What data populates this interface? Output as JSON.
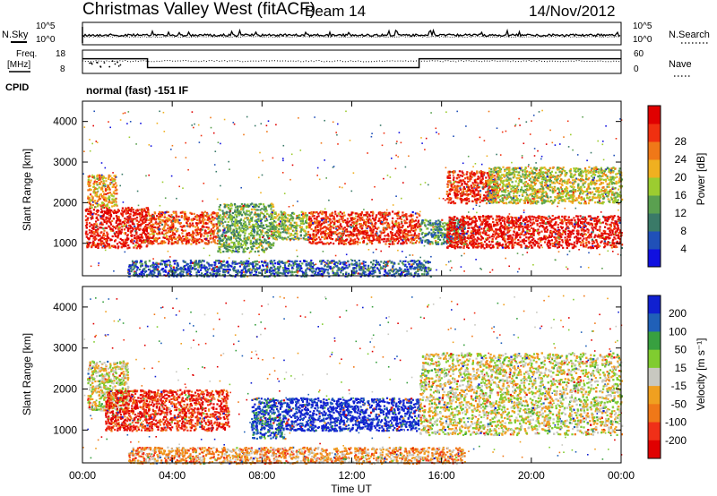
{
  "header": {
    "radar": "Christmas Valley West (fitACF)",
    "beam": "Beam 14",
    "date": "14/Nov/2012"
  },
  "meta_panel": {
    "nsky_label": "N.Sky",
    "nsearch_label": "N.Search",
    "noise_ticks": [
      "10^5",
      "10^0"
    ],
    "freq_label_1": "Freq.",
    "freq_label_2": "[MHz]",
    "freq_ticks": [
      "18",
      "8"
    ],
    "nave_label": "Nave",
    "nave_ticks": [
      "60",
      "0"
    ],
    "cpid_label": "CPID",
    "cpid_value": "normal (fast) -151 IF"
  },
  "x_axis": {
    "label": "Time UT",
    "ticks": [
      "00:00",
      "04:00",
      "08:00",
      "12:00",
      "16:00",
      "20:00",
      "00:00"
    ]
  },
  "power_panel": {
    "ylabel": "Slant Range [km]",
    "yticks": [
      "1000",
      "2000",
      "3000",
      "4000"
    ],
    "colorbar_label": "Power [dB]",
    "colorbar_ticks": [
      "4",
      "8",
      "12",
      "16",
      "20",
      "24",
      "28"
    ],
    "colors": [
      "#1010e0",
      "#2050b8",
      "#3a7a68",
      "#5aa050",
      "#9ccc30",
      "#f0b020",
      "#f07818",
      "#f03010",
      "#e00000"
    ]
  },
  "velocity_panel": {
    "ylabel": "Slant Range [km]",
    "yticks": [
      "1000",
      "2000",
      "3000",
      "4000"
    ],
    "colorbar_label": "Velocity [m s⁻¹]",
    "colorbar_ticks": [
      "200",
      "100",
      "50",
      "15",
      "-15",
      "-50",
      "-100",
      "-200"
    ],
    "colors": [
      "#1020d0",
      "#2060b8",
      "#38a040",
      "#80cc30",
      "#c8c8c0",
      "#f0a020",
      "#f07818",
      "#f03018",
      "#e00000"
    ]
  },
  "chart_data": [
    {
      "type": "line",
      "title": "Christmas Valley West (fitACF)",
      "x_unit": "hours UT",
      "xlim": [
        0,
        24
      ],
      "series": [
        {
          "name": "Freq.",
          "x": [
            0,
            2.9,
            2.9,
            15,
            15,
            24
          ],
          "values": [
            14.3,
            14.3,
            10.5,
            10.5,
            14.3,
            14.3
          ]
        }
      ],
      "ylim": [
        8,
        18
      ]
    },
    {
      "type": "heatmap",
      "xlabel": "Time UT",
      "ylabel": "Slant Range [km]",
      "xlim": [
        0,
        24
      ],
      "ylim": [
        200,
        4500
      ],
      "colorbar_label": "Power [dB]",
      "colorbar_range": [
        0,
        30
      ],
      "regions": [
        {
          "t": [
            0.1,
            2.9
          ],
          "range_km": [
            900,
            1900
          ],
          "value": 28
        },
        {
          "t": [
            0.2,
            1.5
          ],
          "range_km": [
            1900,
            2700
          ],
          "value": 20
        },
        {
          "t": [
            2.9,
            6.0
          ],
          "range_km": [
            1000,
            1800
          ],
          "value": 24
        },
        {
          "t": [
            6.0,
            8.5
          ],
          "range_km": [
            800,
            2000
          ],
          "value": 12
        },
        {
          "t": [
            8.5,
            10.0
          ],
          "range_km": [
            1100,
            1800
          ],
          "value": 14
        },
        {
          "t": [
            10.0,
            15.0
          ],
          "range_km": [
            1000,
            1800
          ],
          "value": 26
        },
        {
          "t": [
            15.0,
            17.0
          ],
          "range_km": [
            1000,
            1600
          ],
          "value": 10
        },
        {
          "t": [
            16.2,
            24.0
          ],
          "range_km": [
            900,
            1700
          ],
          "value": 28
        },
        {
          "t": [
            16.2,
            18.5
          ],
          "range_km": [
            2000,
            2800
          ],
          "value": 26
        },
        {
          "t": [
            18.0,
            24.0
          ],
          "range_km": [
            2000,
            2900
          ],
          "value": 16
        },
        {
          "t": [
            2.0,
            15.5
          ],
          "range_km": [
            200,
            600
          ],
          "value": 6
        }
      ]
    },
    {
      "type": "heatmap",
      "xlabel": "Time UT",
      "ylabel": "Slant Range [km]",
      "xlim": [
        0,
        24
      ],
      "ylim": [
        200,
        4500
      ],
      "colorbar_label": "Velocity [m s⁻¹]",
      "colorbar_range": [
        -200,
        200
      ],
      "regions": [
        {
          "t": [
            0.2,
            2.0
          ],
          "range_km": [
            1500,
            2700
          ],
          "value": 0
        },
        {
          "t": [
            1.0,
            6.5
          ],
          "range_km": [
            1000,
            2000
          ],
          "value": -150
        },
        {
          "t": [
            7.5,
            9.0
          ],
          "range_km": [
            800,
            1800
          ],
          "value": 150
        },
        {
          "t": [
            9.0,
            15.0
          ],
          "range_km": [
            1000,
            1800
          ],
          "value": 200
        },
        {
          "t": [
            15.0,
            24.0
          ],
          "range_km": [
            900,
            2900
          ],
          "value": 0
        },
        {
          "t": [
            2.0,
            17.0
          ],
          "range_km": [
            200,
            600
          ],
          "value": -60
        }
      ]
    }
  ]
}
